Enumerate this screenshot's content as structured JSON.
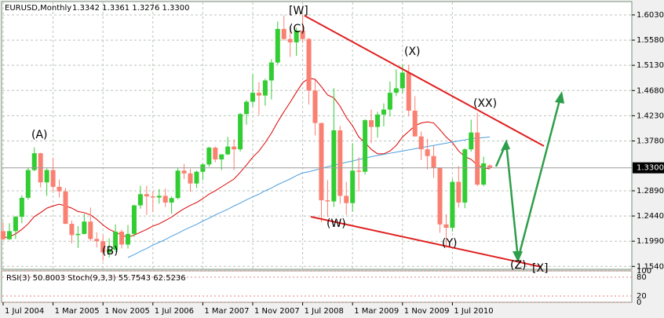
{
  "chart_data": {
    "type": "candlestick",
    "title": "EURUSD,Monthly",
    "info": "1.3342 1.3361 1.3276 1.3300",
    "categories": [
      "1 Jul 2004",
      null,
      null,
      null,
      null,
      null,
      null,
      null,
      "1 Mar 2005",
      null,
      null,
      null,
      null,
      null,
      null,
      null,
      "1 Nov 2005",
      null,
      null,
      null,
      null,
      null,
      null,
      null,
      "1 Jul 2006",
      null,
      null,
      null,
      null,
      null,
      null,
      null,
      "1 Mar 2007",
      null,
      null,
      null,
      null,
      null,
      null,
      null,
      "1 Nov 2007",
      null,
      null,
      null,
      null,
      null,
      null,
      null,
      "1 Jul 2008",
      null,
      null,
      null,
      null,
      null,
      null,
      null,
      "1 Mar 2009",
      null,
      null,
      null,
      null,
      null,
      null,
      null,
      "1 Nov 2009",
      null,
      null,
      null,
      null,
      null,
      null,
      null,
      "1 Jul 2010",
      null,
      null,
      null,
      null,
      null,
      null
    ],
    "open": [
      1.217,
      1.2025,
      1.217,
      1.2425,
      1.2765,
      1.326,
      1.356,
      1.304,
      1.326,
      1.296,
      1.288,
      1.23,
      1.21,
      1.212,
      1.234,
      1.203,
      1.199,
      1.179,
      1.184,
      1.216,
      1.193,
      1.212,
      1.263,
      1.283,
      1.279,
      1.277,
      1.28,
      1.268,
      1.276,
      1.325,
      1.32,
      1.302,
      1.323,
      1.336,
      1.366,
      1.345,
      1.354,
      1.368,
      1.363,
      1.426,
      1.448,
      1.464,
      1.459,
      1.486,
      1.518,
      1.578,
      1.56,
      1.554,
      1.575,
      1.56,
      1.468,
      1.41,
      1.272,
      1.27,
      1.397,
      1.28,
      1.267,
      1.325,
      1.323,
      1.415,
      1.403,
      1.425,
      1.434,
      1.464,
      1.472,
      1.5,
      1.432,
      1.386,
      1.363,
      1.351,
      1.33,
      1.229,
      1.223,
      1.305,
      1.268,
      1.363,
      1.393,
      1.3,
      1.3342
    ],
    "high": [
      1.233,
      1.231,
      1.244,
      1.281,
      1.33,
      1.3665,
      1.357,
      1.329,
      1.348,
      1.309,
      1.294,
      1.236,
      1.226,
      1.248,
      1.259,
      1.215,
      1.21,
      1.204,
      1.229,
      1.22,
      1.228,
      1.264,
      1.298,
      1.298,
      1.288,
      1.292,
      1.293,
      1.279,
      1.329,
      1.337,
      1.328,
      1.325,
      1.338,
      1.368,
      1.368,
      1.354,
      1.385,
      1.381,
      1.428,
      1.451,
      1.497,
      1.483,
      1.489,
      1.524,
      1.591,
      1.602,
      1.582,
      1.58,
      1.604,
      1.562,
      1.487,
      1.41,
      1.308,
      1.472,
      1.405,
      1.305,
      1.374,
      1.349,
      1.417,
      1.434,
      1.43,
      1.445,
      1.484,
      1.506,
      1.514,
      1.514,
      1.458,
      1.395,
      1.382,
      1.369,
      1.331,
      1.247,
      1.31,
      1.333,
      1.365,
      1.416,
      1.428,
      1.35,
      1.3361
    ],
    "low": [
      1.201,
      1.201,
      1.203,
      1.231,
      1.273,
      1.324,
      1.295,
      1.28,
      1.287,
      1.277,
      1.229,
      1.195,
      1.187,
      1.211,
      1.199,
      1.188,
      1.164,
      1.17,
      1.18,
      1.186,
      1.186,
      1.207,
      1.257,
      1.246,
      1.251,
      1.266,
      1.26,
      1.248,
      1.274,
      1.31,
      1.287,
      1.294,
      1.308,
      1.332,
      1.34,
      1.326,
      1.353,
      1.326,
      1.359,
      1.407,
      1.439,
      1.424,
      1.441,
      1.452,
      1.514,
      1.557,
      1.528,
      1.53,
      1.553,
      1.443,
      1.388,
      1.233,
      1.242,
      1.26,
      1.266,
      1.246,
      1.252,
      1.288,
      1.318,
      1.374,
      1.384,
      1.404,
      1.422,
      1.458,
      1.463,
      1.422,
      1.386,
      1.344,
      1.327,
      1.312,
      1.214,
      1.188,
      1.216,
      1.259,
      1.258,
      1.359,
      1.297,
      1.297,
      1.3276
    ],
    "close": [
      1.2025,
      1.217,
      1.2425,
      1.2765,
      1.326,
      1.356,
      1.304,
      1.326,
      1.296,
      1.288,
      1.23,
      1.21,
      1.212,
      1.234,
      1.203,
      1.199,
      1.179,
      1.184,
      1.216,
      1.193,
      1.212,
      1.263,
      1.283,
      1.279,
      1.277,
      1.28,
      1.268,
      1.276,
      1.325,
      1.32,
      1.302,
      1.323,
      1.336,
      1.366,
      1.345,
      1.354,
      1.368,
      1.363,
      1.426,
      1.448,
      1.464,
      1.459,
      1.486,
      1.518,
      1.578,
      1.56,
      1.554,
      1.575,
      1.56,
      1.468,
      1.41,
      1.272,
      1.27,
      1.397,
      1.28,
      1.267,
      1.325,
      1.323,
      1.415,
      1.403,
      1.425,
      1.434,
      1.464,
      1.472,
      1.5,
      1.432,
      1.386,
      1.363,
      1.351,
      1.33,
      1.229,
      1.223,
      1.305,
      1.268,
      1.363,
      1.393,
      1.3,
      1.338,
      1.33
    ],
    "up_color": "#32cd32",
    "down_color": "#fa8072",
    "overlays": [
      {
        "color": "#dd0000",
        "values": [
          1.205,
          1.207,
          1.212,
          1.22,
          1.23,
          1.243,
          1.25,
          1.258,
          1.262,
          1.265,
          1.262,
          1.258,
          1.252,
          1.25,
          1.246,
          1.238,
          1.228,
          1.22,
          1.215,
          1.21,
          1.206,
          1.21,
          1.215,
          1.22,
          1.226,
          1.23,
          1.236,
          1.242,
          1.25,
          1.257,
          1.263,
          1.268,
          1.275,
          1.283,
          1.289,
          1.296,
          1.303,
          1.31,
          1.322,
          1.335,
          1.349,
          1.36,
          1.375,
          1.392,
          1.412,
          1.43,
          1.447,
          1.465,
          1.482,
          1.49,
          1.488,
          1.475,
          1.46,
          1.455,
          1.44,
          1.42,
          1.405,
          1.385,
          1.375,
          1.363,
          1.355,
          1.355,
          1.36,
          1.37,
          1.385,
          1.395,
          1.405,
          1.41,
          1.412,
          1.41,
          1.398,
          1.385,
          1.375,
          1.36,
          1.35,
          1.345,
          1.335,
          1.33,
          1.328
        ]
      },
      {
        "color": "#4a9ee0",
        "values": [
          null,
          null,
          null,
          null,
          null,
          null,
          null,
          null,
          null,
          null,
          null,
          null,
          null,
          null,
          null,
          null,
          null,
          null,
          null,
          null,
          1.17,
          1.175,
          1.181,
          1.186,
          1.192,
          1.197,
          1.202,
          1.208,
          1.213,
          1.219,
          1.224,
          1.229,
          1.235,
          1.24,
          1.246,
          1.251,
          1.256,
          1.262,
          1.267,
          1.273,
          1.278,
          1.283,
          1.289,
          1.294,
          1.3,
          1.305,
          1.31,
          1.316,
          1.321,
          1.323,
          1.326,
          1.329,
          1.332,
          1.335,
          1.337,
          1.34,
          1.342,
          1.345,
          1.347,
          1.35,
          1.352,
          1.354,
          1.356,
          1.358,
          1.36,
          1.362,
          1.364,
          1.366,
          1.368,
          1.37,
          1.372,
          1.374,
          1.376,
          1.378,
          1.38,
          1.382,
          1.383,
          1.384,
          1.385
        ]
      }
    ],
    "ylim": [
      1.1488,
      1.6296
    ],
    "yticks": [
      {
        "value": 1.603,
        "label": "1.6030"
      },
      {
        "value": 1.558,
        "label": "1.5580"
      },
      {
        "value": 1.513,
        "label": "1.5130"
      },
      {
        "value": 1.468,
        "label": "1.4680"
      },
      {
        "value": 1.423,
        "label": "1.4230"
      },
      {
        "value": 1.378,
        "label": "1.3780"
      },
      {
        "value": 1.289,
        "label": "1.2890"
      },
      {
        "value": 1.244,
        "label": "1.2440"
      },
      {
        "value": 1.199,
        "label": "1.1990"
      },
      {
        "value": 1.154,
        "label": "1.1540"
      }
    ],
    "current_price": {
      "value": 1.33,
      "label": "1.3300"
    },
    "grid": true,
    "wave_labels": [
      "[W]",
      "(C)",
      "(X)",
      "(XX)",
      "(A)",
      "(W)",
      "(B)",
      "(Y)",
      "(Z)",
      "[X]"
    ],
    "indicator_label": "RSI(3) 50.8003  Stoch(9,3,3) 55.7543 62.5236",
    "indicator_ylim": [
      0,
      100
    ],
    "indicator_yticks": [
      0,
      20,
      80,
      100
    ]
  }
}
